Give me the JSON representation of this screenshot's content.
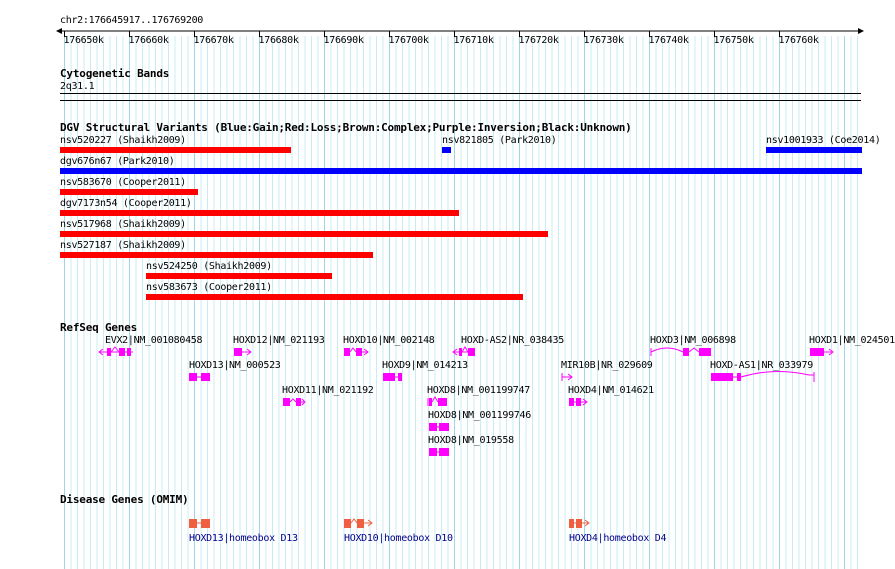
{
  "ruler": {
    "location": "chr2:176645917..176769200",
    "ticks": [
      "176650k",
      "176660k",
      "176670k",
      "176680k",
      "176690k",
      "176700k",
      "176710k",
      "176720k",
      "176730k",
      "176740k",
      "176750k",
      "176760k"
    ]
  },
  "cyto": {
    "title": "Cytogenetic Bands",
    "band": "2q31.1"
  },
  "dgv": {
    "title": "DGV Structural Variants (Blue:Gain;Red:Loss;Brown:Complex;Purple:Inversion;Black:Unknown)",
    "colors": {
      "gain": "#0000ff",
      "loss": "#ff0000"
    },
    "variants": [
      {
        "label": "nsv520227 (Shaikh2009)",
        "type": "loss"
      },
      {
        "label": "nsv821805 (Park2010)",
        "type": "gain"
      },
      {
        "label": "nsv1001933 (Coe2014)",
        "type": "gain"
      },
      {
        "label": "dgv676n67 (Park2010)",
        "type": "gain"
      },
      {
        "label": "nsv583670 (Cooper2011)",
        "type": "loss"
      },
      {
        "label": "dgv7173n54 (Cooper2011)",
        "type": "loss"
      },
      {
        "label": "nsv517968 (Shaikh2009)",
        "type": "loss"
      },
      {
        "label": "nsv527187 (Shaikh2009)",
        "type": "loss"
      },
      {
        "label": "nsv524250 (Shaikh2009)",
        "type": "loss"
      },
      {
        "label": "nsv583673 (Cooper2011)",
        "type": "loss"
      }
    ]
  },
  "refseq": {
    "title": "RefSeq Genes",
    "color": "#ff00ff",
    "genes": [
      {
        "label": "EVX2|NM_001080458"
      },
      {
        "label": "HOXD12|NM_021193"
      },
      {
        "label": "HOXD10|NM_002148"
      },
      {
        "label": "HOXD-AS2|NR_038435"
      },
      {
        "label": "HOXD3|NM_006898"
      },
      {
        "label": "HOXD1|NM_024501"
      },
      {
        "label": "HOXD13|NM_000523"
      },
      {
        "label": "HOXD9|NM_014213"
      },
      {
        "label": "MIR10B|NR_029609"
      },
      {
        "label": "HOXD-AS1|NR_033979"
      },
      {
        "label": "HOXD11|NM_021192"
      },
      {
        "label": "HOXD8|NM_001199747"
      },
      {
        "label": "HOXD4|NM_014621"
      },
      {
        "label": "HOXD8|NM_001199746"
      },
      {
        "label": "HOXD8|NM_019558"
      }
    ]
  },
  "disease": {
    "title": "Disease Genes (OMIM)",
    "color": "#f06040",
    "genes": [
      {
        "label": "HOXD13|homeobox D13"
      },
      {
        "label": "HOXD10|homeobox D10"
      },
      {
        "label": "HOXD4|homeobox D4"
      }
    ]
  }
}
